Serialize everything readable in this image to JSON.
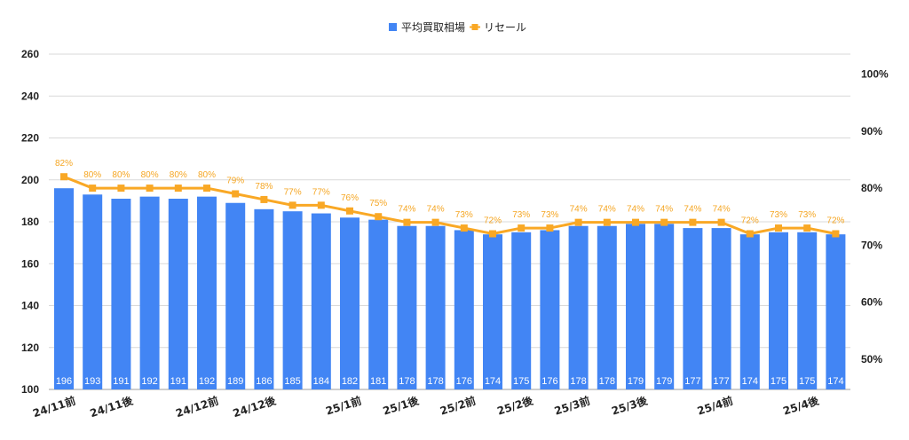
{
  "chart_data": {
    "type": "bar",
    "legend_position": "top",
    "grid": true,
    "legend": [
      {
        "name": "平均買取相場",
        "color": "#4285f4",
        "marker": "square"
      },
      {
        "name": "リセール",
        "color": "#f9a825",
        "marker": "line-square"
      }
    ],
    "categories": [
      "24/11前",
      "",
      "24/11後",
      "",
      "",
      "24/12前",
      "",
      "24/12後",
      "",
      "",
      "25/1前",
      "",
      "25/1後",
      "",
      "25/2前",
      "",
      "25/2後",
      "",
      "25/3前",
      "",
      "25/3後",
      "",
      "",
      "25/4前",
      "",
      "",
      "25/4後",
      ""
    ],
    "series": [
      {
        "name": "平均買取相場",
        "type": "bar",
        "axis": "left",
        "values": [
          196,
          193,
          191,
          192,
          191,
          192,
          189,
          186,
          185,
          184,
          182,
          181,
          178,
          178,
          176,
          174,
          175,
          176,
          178,
          178,
          179,
          179,
          177,
          177,
          174,
          175,
          175,
          174
        ],
        "labels": [
          "196",
          "193",
          "191",
          "192",
          "191",
          "192",
          "189",
          "186",
          "185",
          "184",
          "182",
          "181",
          "178",
          "178",
          "176",
          "174",
          "175",
          "176",
          "178",
          "178",
          "179",
          "179",
          "177",
          "177",
          "174",
          "175",
          "175",
          "174"
        ]
      },
      {
        "name": "リセール",
        "type": "line",
        "axis": "right",
        "values": [
          82,
          80,
          80,
          80,
          80,
          80,
          79,
          78,
          77,
          77,
          76,
          75,
          74,
          74,
          73,
          72,
          73,
          73,
          74,
          74,
          74,
          74,
          74,
          74,
          72,
          73,
          73,
          72
        ],
        "labels": [
          "82%",
          "80%",
          "80%",
          "80%",
          "80%",
          "80%",
          "79%",
          "78%",
          "77%",
          "77%",
          "76%",
          "75%",
          "74%",
          "74%",
          "73%",
          "72%",
          "73%",
          "73%",
          "74%",
          "74%",
          "74%",
          "74%",
          "74%",
          "74%",
          "72%",
          "73%",
          "73%",
          "72%"
        ]
      }
    ],
    "y_left": {
      "min": 100,
      "max": 260,
      "ticks": [
        "100",
        "120",
        "140",
        "160",
        "180",
        "200",
        "220",
        "240",
        "260"
      ]
    },
    "y_right": {
      "min": 44.7,
      "max": 103.5,
      "ticks": [
        {
          "v": 50,
          "label": "50%"
        },
        {
          "v": 60,
          "label": "60%"
        },
        {
          "v": 70,
          "label": "70%"
        },
        {
          "v": 80,
          "label": "80%"
        },
        {
          "v": 90,
          "label": "90%"
        },
        {
          "v": 100,
          "label": "100%"
        }
      ]
    },
    "colors": {
      "bar": "#4285f4",
      "line": "#f9a825",
      "point_label": "#f5a623",
      "grid": "#d9d9d9"
    }
  }
}
